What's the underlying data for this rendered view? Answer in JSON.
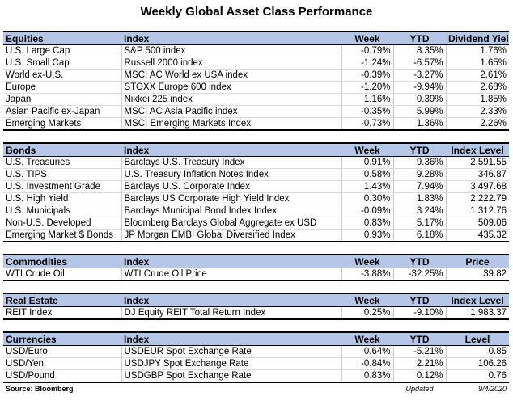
{
  "title": "Weekly Global Asset Class Performance",
  "sections": [
    {
      "header": [
        "Equities",
        "Index",
        "Week",
        "YTD",
        "Dividend Yield"
      ],
      "rows": [
        [
          "U.S. Large Cap",
          "S&P 500 index",
          "-0.79%",
          "8.35%",
          "1.76%"
        ],
        [
          "U.S. Small Cap",
          "Russell 2000 index",
          "-1.24%",
          "-6.57%",
          "1.65%"
        ],
        [
          "World ex-U.S.",
          "MSCI AC World ex USA index",
          "-0.39%",
          "-3.27%",
          "2.61%"
        ],
        [
          "Europe",
          "STOXX Europe 600 index",
          "-1.20%",
          "-9.94%",
          "2.68%"
        ],
        [
          "Japan",
          "Nikkei 225 index",
          "1.16%",
          "0.39%",
          "1.85%"
        ],
        [
          "Asian Pacific ex-Japan",
          "MSCI AC Asia Pacific index",
          "-0.35%",
          "5.99%",
          "2.33%"
        ],
        [
          "Emerging Markets",
          "MSCI Emerging Markets Index",
          "-0.73%",
          "1.36%",
          "2.26%"
        ]
      ]
    },
    {
      "header": [
        "Bonds",
        "Index",
        "Week",
        "YTD",
        "Index Level"
      ],
      "rows": [
        [
          "U.S. Treasuries",
          "Barclays U.S. Treasury Index",
          "0.91%",
          "9.36%",
          "2,591.55"
        ],
        [
          "U.S. TIPS",
          "U.S. Treasury Inflation Notes Index",
          "0.58%",
          "9.28%",
          "346.87"
        ],
        [
          "U.S. Investment Grade",
          "Barclays U.S. Corporate Index",
          "1.43%",
          "7.94%",
          "3,497.68"
        ],
        [
          "U.S. High Yield",
          "Barclays US Corporate High Yield Index",
          "0.30%",
          "1.83%",
          "2,222.79"
        ],
        [
          "U.S. Municipals",
          "Barclays Municipal Bond Index Index",
          "-0.09%",
          "3.24%",
          "1,312.76"
        ],
        [
          "Non-U.S. Developed",
          "Bloomberg Barclays Global Aggregate ex USD",
          "0.83%",
          "5.17%",
          "509.06"
        ],
        [
          "Emerging Market $ Bonds",
          "JP Morgan EMBI Global Diversified Index",
          "0.93%",
          "6.18%",
          "435.32"
        ]
      ]
    },
    {
      "header": [
        "Commodities",
        "Index",
        "Week",
        "YTD",
        "Price"
      ],
      "rows": [
        [
          "WTI Crude Oil",
          "WTI Crude Oil Price",
          "-3.88%",
          "-32.25%",
          "39.82"
        ]
      ]
    },
    {
      "header": [
        "Real Estate",
        "Index",
        "Week",
        "YTD",
        "Index Level"
      ],
      "rows": [
        [
          "REIT Index",
          "DJ Equity REIT Total Return Index",
          "0.25%",
          "-9.10%",
          "1,983.37"
        ]
      ]
    },
    {
      "header": [
        "Currencies",
        "Index",
        "Week",
        "YTD",
        "Level"
      ],
      "rows": [
        [
          "USD/Euro",
          "USDEUR Spot Exchange Rate",
          "0.64%",
          "-5.21%",
          "0.85"
        ],
        [
          "USD/Yen",
          "USDJPY Spot Exchange Rate",
          "-0.84%",
          "2.21%",
          "106.26"
        ],
        [
          "USD/Pound",
          "USDGBP Spot Exchange Rate",
          "0.83%",
          "0.12%",
          "0.76"
        ]
      ]
    }
  ],
  "footer": {
    "source": "Source: Bloomberg",
    "updated_label": "Updated",
    "date": "9/4/2020"
  }
}
